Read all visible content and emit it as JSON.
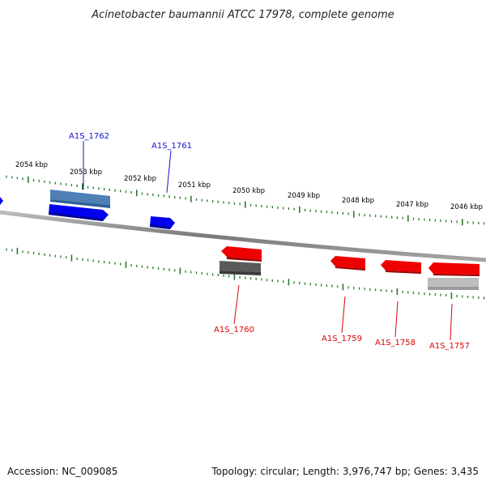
{
  "title": "Acinetobacter baumannii ATCC 17978, complete genome",
  "footer": {
    "accession": "Accession: NC_009085",
    "summary": "Topology: circular; Length: 3,976,747 bp; Genes: 3,435"
  },
  "colors": {
    "forward_gene": "#0000ee",
    "reverse_gene": "#ee0000",
    "forward_label": "#1010cc",
    "reverse_label": "#dd0000",
    "tick": "#2a7a2a",
    "backbone": "#888888"
  },
  "scale_labels": [
    "2054 kbp",
    "2053 kbp",
    "2052 kbp",
    "2051 kbp",
    "2050 kbp",
    "2049 kbp",
    "2048 kbp",
    "2047 kbp",
    "2046 kbp"
  ],
  "genes_forward": [
    {
      "name": "A1S_1762",
      "strand": "+"
    },
    {
      "name": "A1S_1761",
      "strand": "+"
    }
  ],
  "genes_reverse": [
    {
      "name": "A1S_1760",
      "strand": "-"
    },
    {
      "name": "A1S_1759",
      "strand": "-"
    },
    {
      "name": "A1S_1758",
      "strand": "-"
    },
    {
      "name": "A1S_1757",
      "strand": "-"
    }
  ]
}
